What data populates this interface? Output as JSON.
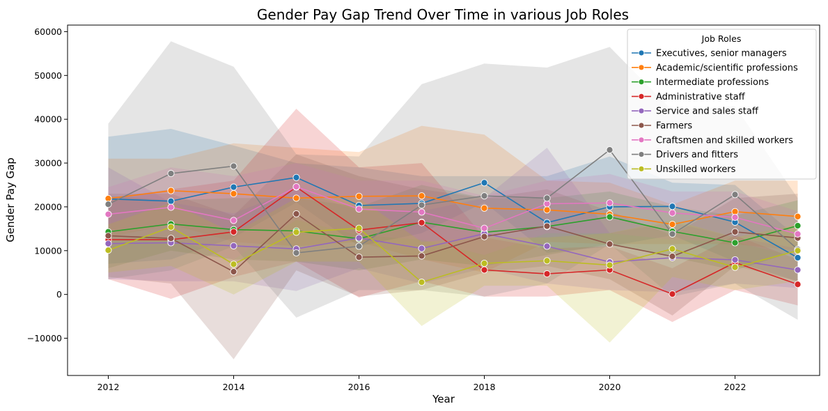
{
  "chart_data": {
    "type": "line",
    "title": "Gender Pay Gap Trend Over Time in various Job Roles",
    "xlabel": "Year",
    "ylabel": "Gender Pay Gap",
    "xlim": [
      2011.35,
      2023.35
    ],
    "ylim": [
      -18500,
      61500
    ],
    "x_ticks": [
      2012,
      2014,
      2016,
      2018,
      2020,
      2022
    ],
    "y_ticks": [
      -10000,
      0,
      10000,
      20000,
      30000,
      40000,
      50000,
      60000
    ],
    "x_tick_labels": [
      "2012",
      "2014",
      "2016",
      "2018",
      "2020",
      "2022"
    ],
    "y_tick_labels": [
      "−10000",
      "0",
      "10000",
      "20000",
      "30000",
      "40000",
      "50000",
      "60000"
    ],
    "grid": false,
    "legend_title": "Job Roles",
    "legend_position": "top-right",
    "x": [
      2012,
      2013,
      2014,
      2015,
      2016,
      2017,
      2018,
      2019,
      2020,
      2021,
      2022,
      2023
    ],
    "series": [
      {
        "name": " Executives, senior managers",
        "color": "#1f77b4",
        "values": [
          21800,
          21300,
          24500,
          26700,
          20300,
          20800,
          25500,
          16400,
          20000,
          20100,
          16500,
          8400
        ],
        "upper": [
          36000,
          37800,
          34000,
          30000,
          29000,
          27000,
          27000,
          27000,
          31500,
          25500,
          25000,
          13000
        ],
        "lower": [
          7000,
          8000,
          13000,
          21000,
          11000,
          14000,
          21000,
          9500,
          11000,
          13500,
          7500,
          3000
        ]
      },
      {
        "name": " Academic/scientific professions",
        "color": "#ff7f0e",
        "values": [
          21900,
          23700,
          23000,
          22000,
          22400,
          22500,
          19700,
          19300,
          18300,
          16000,
          18900,
          17800
        ],
        "upper": [
          31000,
          31000,
          34500,
          33500,
          32500,
          38500,
          36500,
          26000,
          25500,
          20500,
          26000,
          26000
        ],
        "lower": [
          13000,
          16000,
          12000,
          11000,
          12000,
          8000,
          5000,
          12000,
          11500,
          11500,
          11500,
          10000
        ]
      },
      {
        "name": " Intermediate professions",
        "color": "#2ca02c",
        "values": [
          14300,
          16100,
          14800,
          14500,
          12700,
          16500,
          14200,
          15500,
          17700,
          14400,
          11800,
          15700
        ],
        "upper": [
          22500,
          21500,
          22000,
          22000,
          20000,
          25000,
          22000,
          22000,
          23500,
          20000,
          18000,
          21500
        ],
        "lower": [
          6000,
          10000,
          8000,
          7500,
          5500,
          8000,
          6500,
          9000,
          11500,
          8500,
          5500,
          10000
        ]
      },
      {
        "name": " Administrative staff",
        "color": "#d62728",
        "values": [
          12500,
          12500,
          14300,
          24500,
          14700,
          16400,
          5600,
          4700,
          5600,
          100,
          7300,
          2300
        ],
        "upper": [
          22000,
          24000,
          26000,
          42400,
          29000,
          30000,
          13000,
          10500,
          11000,
          6000,
          13500,
          8000
        ],
        "lower": [
          3500,
          -1000,
          4000,
          7500,
          -700,
          3000,
          -500,
          -500,
          1000,
          -6300,
          1000,
          -2500
        ]
      },
      {
        "name": " Service and sales staff",
        "color": "#9467bd",
        "values": [
          11600,
          11800,
          11100,
          10400,
          12900,
          10500,
          13900,
          11000,
          7400,
          8400,
          7900,
          5600
        ],
        "upper": [
          29000,
          21000,
          18500,
          24000,
          19000,
          19000,
          22000,
          33500,
          14000,
          16500,
          13000,
          10500
        ],
        "lower": [
          3500,
          3000,
          3000,
          800,
          6000,
          2500,
          6000,
          2500,
          1000,
          500,
          2500,
          1500
        ]
      },
      {
        "name": " Farmers",
        "color": "#8c564b",
        "values": [
          13400,
          12800,
          5200,
          18400,
          8500,
          8800,
          13200,
          15600,
          11500,
          8700,
          14300,
          12900
        ],
        "upper": [
          23000,
          23000,
          18000,
          32000,
          27000,
          24000,
          22000,
          24000,
          19000,
          13500,
          22000,
          23000
        ],
        "lower": [
          4000,
          2500,
          -14800,
          5500,
          -500,
          1000,
          5000,
          6500,
          3500,
          -4800,
          6500,
          3000
        ]
      },
      {
        "name": " Craftsmen and skilled workers",
        "color": "#e377c2",
        "values": [
          18300,
          19900,
          16900,
          24600,
          19500,
          18800,
          15100,
          20700,
          20900,
          18600,
          17600,
          13800
        ],
        "upper": [
          24500,
          29000,
          27000,
          30000,
          26000,
          26000,
          22500,
          26000,
          27500,
          23500,
          23500,
          19000
        ],
        "lower": [
          12500,
          13000,
          8000,
          17000,
          13500,
          12500,
          9000,
          14000,
          14000,
          12500,
          12000,
          8500
        ]
      },
      {
        "name": " Drivers and fitters",
        "color": "#7f7f7f",
        "values": [
          20600,
          27600,
          29300,
          9500,
          11000,
          20400,
          22500,
          22000,
          33000,
          13800,
          22800,
          10300
        ],
        "upper": [
          39000,
          57800,
          52000,
          32000,
          31500,
          48000,
          52700,
          51800,
          56500,
          42000,
          43000,
          22000
        ],
        "lower": [
          3500,
          5500,
          11000,
          -5300,
          1000,
          1000,
          -500,
          2500,
          11500,
          -500,
          2500,
          -5800
        ]
      },
      {
        "name": " Unskilled workers",
        "color": "#bcbd22",
        "values": [
          10100,
          15400,
          6900,
          14200,
          15100,
          2800,
          7100,
          7700,
          6700,
          10400,
          6200,
          10000
        ],
        "upper": [
          16000,
          21000,
          14000,
          22000,
          22000,
          12000,
          13000,
          13000,
          14000,
          17000,
          13000,
          16000
        ],
        "lower": [
          5000,
          6500,
          0,
          7500,
          7500,
          -7200,
          2000,
          2000,
          -11000,
          4000,
          1000,
          3000
        ]
      }
    ]
  }
}
